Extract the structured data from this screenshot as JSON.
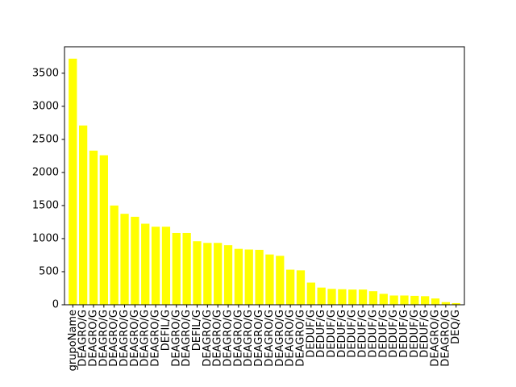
{
  "chart_data": {
    "type": "bar",
    "title": "",
    "xlabel": "",
    "ylabel": "",
    "categories": [
      "grupoName",
      "DEAGRO/G",
      "DEAGRO/G",
      "DEAGRO/G",
      "DEAGRO/G",
      "DEAGRO/G",
      "DEAGRO/G",
      "DEAGRO/G",
      "DEAGRO/G",
      "DEFIL/G",
      "DEAGRO/G",
      "DEAGRO/G",
      "DEFIL/G",
      "DEAGRO/G",
      "DEAGRO/G",
      "DEAGRO/G",
      "DEAGRO/G",
      "DEAGRO/G",
      "DEAGRO/G",
      "DEAGRO/G",
      "DEAGRO/G",
      "DEAGRO/G",
      "DEAGRO/G",
      "DEDUF/G",
      "DEDUF/G",
      "DEDUF/G",
      "DEDUF/G",
      "DEDUF/G",
      "DEDUF/G",
      "DEDUF/G",
      "DEDUF/G",
      "DEDUF/G",
      "DEDUF/G",
      "DEDUF/G",
      "DEDUF/G",
      "DEAGRO/G",
      "DEAGRO/G",
      "DEQ/G"
    ],
    "values": [
      3720,
      2710,
      2330,
      2260,
      1500,
      1375,
      1330,
      1225,
      1180,
      1180,
      1085,
      1085,
      960,
      935,
      935,
      900,
      845,
      835,
      830,
      760,
      740,
      530,
      520,
      335,
      260,
      240,
      235,
      230,
      230,
      205,
      165,
      140,
      140,
      135,
      130,
      95,
      40,
      25
    ],
    "ylim": [
      0,
      3900
    ],
    "yticks": [
      0,
      500,
      1000,
      1500,
      2000,
      2500,
      3000,
      3500
    ],
    "bar_color": "#ffff00",
    "grid": false,
    "legend": false
  }
}
